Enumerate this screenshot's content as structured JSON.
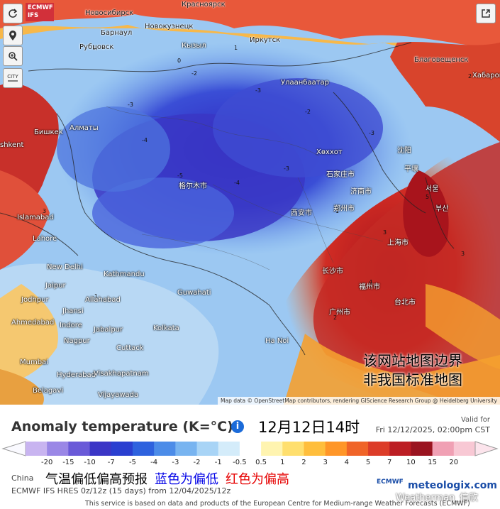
{
  "brand": {
    "line1": "ECMWF",
    "line2": "IFS"
  },
  "controls": {
    "refresh": "refresh-icon",
    "locate": "location-pin-icon",
    "zoom": "zoom-icon",
    "cities_label": "CITY",
    "share": "share-icon"
  },
  "colors": {
    "cold": "#2a3fd0",
    "warm": "#c8302a",
    "accent": "#1b6bd9"
  },
  "map": {
    "notice_line1": "该网站地图边界",
    "notice_line2": "非我国标准地图",
    "attribution": "Map data © OpenStreetMap contributors, rendering GIScience Research Group @ Heidelberg University",
    "cities": [
      {
        "name": "Новосибирск"
      },
      {
        "name": "Барнаул"
      },
      {
        "name": "Новокузнецк"
      },
      {
        "name": "Красноярск"
      },
      {
        "name": "Рубцовск"
      },
      {
        "name": "Кызыл"
      },
      {
        "name": "Иркутск"
      },
      {
        "name": "Благовещенск"
      },
      {
        "name": "Хабаров"
      },
      {
        "name": "Улаанбаатар"
      },
      {
        "name": "Бишкек"
      },
      {
        "name": "Алматы"
      },
      {
        "name": "shkent"
      },
      {
        "name": "Хөххот"
      },
      {
        "name": "沈阳"
      },
      {
        "name": "平壤"
      },
      {
        "name": "서울"
      },
      {
        "name": "부산"
      },
      {
        "name": "石家庄市"
      },
      {
        "name": "济南市"
      },
      {
        "name": "郑州市"
      },
      {
        "name": "西安市"
      },
      {
        "name": "格尔木市"
      },
      {
        "name": "上海市"
      },
      {
        "name": "长沙市"
      },
      {
        "name": "福州市"
      },
      {
        "name": "广州市"
      },
      {
        "name": "台北市"
      },
      {
        "name": "Islamabad"
      },
      {
        "name": "Lahore"
      },
      {
        "name": "New Delhi"
      },
      {
        "name": "Kathmandu"
      },
      {
        "name": "Jaipur"
      },
      {
        "name": "Guwahati"
      },
      {
        "name": "Jodhpur"
      },
      {
        "name": "Jhansi"
      },
      {
        "name": "Allahabad"
      },
      {
        "name": "Ahmedabad"
      },
      {
        "name": "Indore"
      },
      {
        "name": "Jabalpur"
      },
      {
        "name": "Kolkata"
      },
      {
        "name": "Nagpur"
      },
      {
        "name": "Cuttack"
      },
      {
        "name": "Mumbai"
      },
      {
        "name": "Hyderabad"
      },
      {
        "name": "Visakhapatnam"
      },
      {
        "name": "Belagavi"
      },
      {
        "name": "Vijayawada"
      },
      {
        "name": "Ha Noi"
      },
      {
        "name": "China"
      }
    ]
  },
  "panel": {
    "title": "Anomaly temperature (K=°C)",
    "info_icon": "i",
    "datetime": "12月12日14时",
    "valid_for": "Valid for",
    "valid_time": "Fri 12/12/2025, 02:00pm CST",
    "scale_ticks": [
      "-20",
      "-15",
      "-10",
      "-7",
      "-5",
      "-4",
      "-3",
      "-2",
      "-1",
      "-0.5",
      "0.5",
      "1",
      "2",
      "3",
      "4",
      "5",
      "7",
      "10",
      "15",
      "20"
    ],
    "scale_colors": [
      "#c8b4f0",
      "#9a87e6",
      "#6a5ad8",
      "#3b36c6",
      "#2a3fd0",
      "#2e62de",
      "#4c8ce8",
      "#78b4f0",
      "#a8d4f6",
      "#d4ecfa",
      "#ffffff",
      "#fff4b0",
      "#ffdf6e",
      "#ffbe3c",
      "#ff9628",
      "#f06428",
      "#dc3c28",
      "#bc1e24",
      "#9a1420",
      "#f0a0b4",
      "#f8c8d4"
    ],
    "region": "China",
    "legend_a": "气温偏低偏高预报",
    "legend_b": "蓝色为偏低",
    "legend_c": "红色为偏高",
    "model_line": "ECMWF IFS HRES 0z/12z (15 days) from 12/04/2025/12z",
    "disclaimer": "This service is based on data and products of the European Centre for Medium-range Weather Forecasts (ECMWF)",
    "ecmwf_logo": "ECMWF",
    "meteologix_logo": "meteologix.com",
    "watermark": "Weatherman_信欣"
  }
}
